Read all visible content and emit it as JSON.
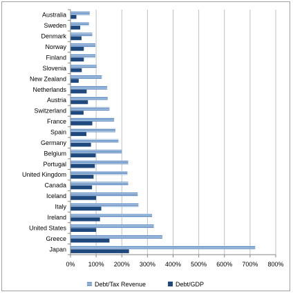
{
  "chart_data": {
    "type": "bar",
    "orientation": "horizontal",
    "categories": [
      "Australia",
      "Sweden",
      "Denmark",
      "Norway",
      "Finland",
      "Slovenia",
      "New Zealand",
      "Netherlands",
      "Austria",
      "Switzerland",
      "France",
      "Spain",
      "Germany",
      "Belgium",
      "Portugal",
      "United Kingdom",
      "Canada",
      "Iceland",
      "Italy",
      "Ireland",
      "United States",
      "Greece",
      "Japan"
    ],
    "series": [
      {
        "name": "Debt/Tax Revenue",
        "color": "#4f81bd",
        "pattern": "horizontal-stripes",
        "values": [
          75,
          72,
          85,
          97,
          97,
          102,
          122,
          143,
          145,
          152,
          170,
          175,
          187,
          200,
          225,
          222,
          225,
          262,
          265,
          318,
          325,
          358,
          720
        ]
      },
      {
        "name": "Debt/GDP",
        "color": "#1f497d",
        "values": [
          23,
          38,
          43,
          52,
          52,
          44,
          32,
          63,
          68,
          51,
          85,
          62,
          80,
          98,
          95,
          90,
          84,
          100,
          120,
          115,
          100,
          152,
          228
        ]
      }
    ],
    "tick_labels": [
      "0%",
      "100%",
      "200%",
      "300%",
      "400%",
      "500%",
      "600%",
      "700%",
      "800%"
    ],
    "xlim": [
      0,
      800
    ],
    "grid": true,
    "legend_position": "bottom"
  }
}
